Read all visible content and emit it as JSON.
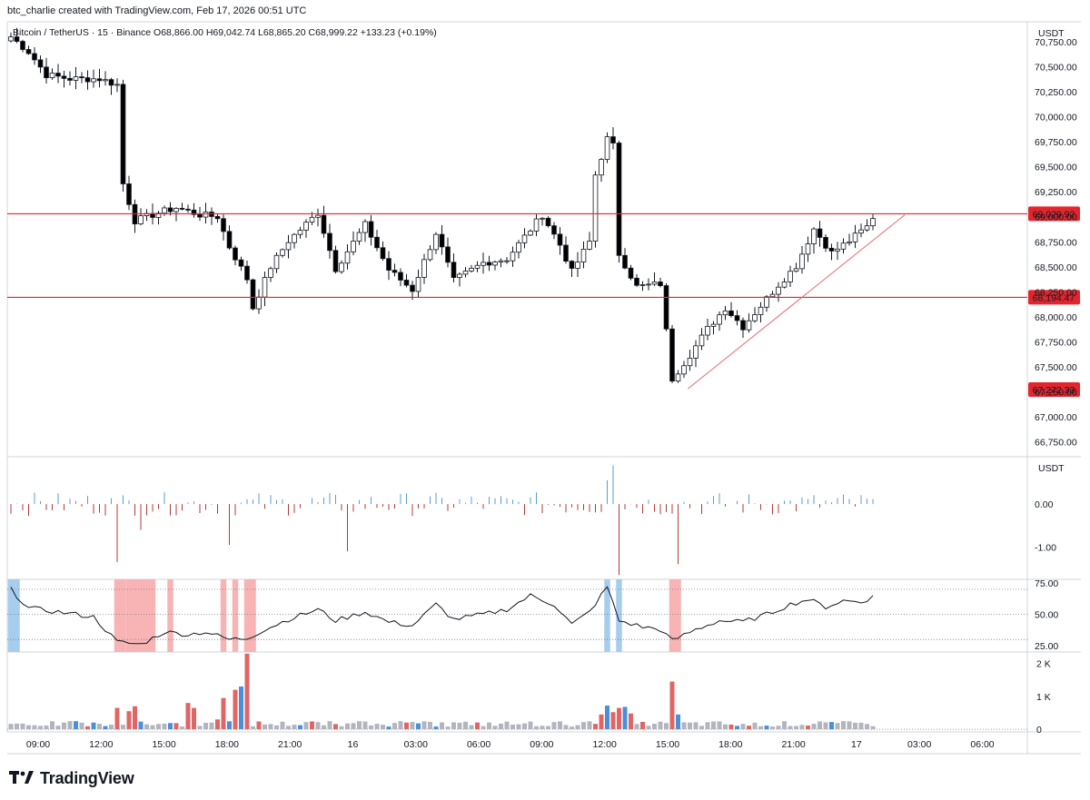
{
  "header": {
    "created_by": "btc_charlie created with TradingView.com, Feb 17, 2026 00:51 UTC"
  },
  "symbol_line": "Bitcoin / TetherUS · 15 · Binance  O68,866.00  H69,042.74  L68,865.20  C68,999.22  +133.23 (+0.19%)",
  "colors": {
    "up": "#ffffff",
    "down": "#000000",
    "outline": "#131722",
    "hline": "#e3262d",
    "trendline": "#e86a6f",
    "label_bg": "#e3262d",
    "pos_bar": "#5b9bd5",
    "neg_bar": "#b23a3a",
    "vol_gray": "#b2b5be",
    "vol_red": "#e06666",
    "vol_blue": "#4a90d9",
    "rsi_red_band": "#f8b4b4",
    "rsi_blue_band": "#a6cdee"
  },
  "footer": {
    "brand": "TradingView",
    "logo_icon": "tradingview-logo-icon"
  },
  "chart_data": [
    {
      "type": "candlestick",
      "title": "Bitcoin / TetherUS · 15 · Binance",
      "unit": "USDT",
      "ylim": [
        66600,
        70950
      ],
      "y_ticks": [
        "70,750.00",
        "70,500.00",
        "70,250.00",
        "70,000.00",
        "69,750.00",
        "69,500.00",
        "69,250.00",
        "69,000.00",
        "68,750.00",
        "68,500.00",
        "68,250.00",
        "68,000.00",
        "67,750.00",
        "67,500.00",
        "67,250.00",
        "67,000.00",
        "66,750.00"
      ],
      "y_tick_values": [
        70750,
        70500,
        70250,
        70000,
        69750,
        69500,
        69250,
        69000,
        68750,
        68500,
        68250,
        68000,
        67750,
        67500,
        67250,
        67000,
        66750
      ],
      "x_ticks": [
        "09:00",
        "12:00",
        "15:00",
        "18:00",
        "21:00",
        "16",
        "03:00",
        "06:00",
        "09:00",
        "12:00",
        "15:00",
        "18:00",
        "21:00",
        "17",
        "03:00",
        "06:00"
      ],
      "horizontal_lines": [
        {
          "value": 69029.92,
          "label": "69,029.92"
        },
        {
          "value": 68194.47,
          "label": "68,194.47"
        }
      ],
      "price_label": "67,272.33",
      "price_label_value": 67272.33,
      "trendline": {
        "from": {
          "index": 0.78,
          "value": 67280
        },
        "to": {
          "index": 1.03,
          "value": 69020
        }
      },
      "anchors": [
        {
          "i": 0,
          "v": 70800
        },
        {
          "i": 3,
          "v": 70650
        },
        {
          "i": 6,
          "v": 70420
        },
        {
          "i": 10,
          "v": 70380
        },
        {
          "i": 15,
          "v": 70380
        },
        {
          "i": 18,
          "v": 70320
        },
        {
          "i": 19,
          "v": 69330
        },
        {
          "i": 21,
          "v": 68960
        },
        {
          "i": 25,
          "v": 69040
        },
        {
          "i": 28,
          "v": 69090
        },
        {
          "i": 32,
          "v": 69020
        },
        {
          "i": 35,
          "v": 69000
        },
        {
          "i": 37,
          "v": 68700
        },
        {
          "i": 40,
          "v": 68380
        },
        {
          "i": 41,
          "v": 68090
        },
        {
          "i": 44,
          "v": 68500
        },
        {
          "i": 47,
          "v": 68760
        },
        {
          "i": 52,
          "v": 69040
        },
        {
          "i": 55,
          "v": 68480
        },
        {
          "i": 60,
          "v": 68920
        },
        {
          "i": 64,
          "v": 68470
        },
        {
          "i": 68,
          "v": 68270
        },
        {
          "i": 72,
          "v": 68840
        },
        {
          "i": 75,
          "v": 68360
        },
        {
          "i": 80,
          "v": 68540
        },
        {
          "i": 84,
          "v": 68580
        },
        {
          "i": 90,
          "v": 69020
        },
        {
          "i": 93,
          "v": 68720
        },
        {
          "i": 95,
          "v": 68450
        },
        {
          "i": 98,
          "v": 68750
        },
        {
          "i": 99,
          "v": 69420
        },
        {
          "i": 101,
          "v": 69780
        },
        {
          "i": 102,
          "v": 69710
        },
        {
          "i": 103,
          "v": 68630
        },
        {
          "i": 106,
          "v": 68300
        },
        {
          "i": 110,
          "v": 68330
        },
        {
          "i": 112,
          "v": 67380
        },
        {
          "i": 115,
          "v": 67620
        },
        {
          "i": 118,
          "v": 67880
        },
        {
          "i": 121,
          "v": 68090
        },
        {
          "i": 124,
          "v": 67900
        },
        {
          "i": 127,
          "v": 68110
        },
        {
          "i": 130,
          "v": 68320
        },
        {
          "i": 133,
          "v": 68510
        },
        {
          "i": 136,
          "v": 68880
        },
        {
          "i": 139,
          "v": 68640
        },
        {
          "i": 142,
          "v": 68760
        },
        {
          "i": 145,
          "v": 68900
        },
        {
          "i": 146,
          "v": 68999
        }
      ]
    },
    {
      "type": "bar",
      "unit": "USDT",
      "y_ticks": [
        "0.00",
        "-1.00"
      ],
      "y_tick_values": [
        0,
        -1
      ],
      "ylim": [
        -1.75,
        1.1
      ],
      "spikes": [
        {
          "i": 18,
          "v": -1.35
        },
        {
          "i": 22,
          "v": -0.6
        },
        {
          "i": 37,
          "v": -0.95
        },
        {
          "i": 57,
          "v": -1.1
        },
        {
          "i": 102,
          "v": 0.9
        },
        {
          "i": 103,
          "v": -1.65
        },
        {
          "i": 113,
          "v": -1.4
        },
        {
          "i": 101,
          "v": 0.55
        }
      ]
    },
    {
      "type": "line",
      "y_ticks": [
        "75.00",
        "50.00",
        "25.00"
      ],
      "y_tick_values": [
        75,
        50,
        25
      ],
      "ylim": [
        20,
        78
      ],
      "levels": [
        70,
        50,
        30
      ],
      "anchors": [
        {
          "i": 0,
          "v": 70
        },
        {
          "i": 3,
          "v": 55
        },
        {
          "i": 8,
          "v": 52
        },
        {
          "i": 14,
          "v": 48
        },
        {
          "i": 18,
          "v": 28
        },
        {
          "i": 22,
          "v": 26
        },
        {
          "i": 26,
          "v": 36
        },
        {
          "i": 30,
          "v": 34
        },
        {
          "i": 33,
          "v": 36
        },
        {
          "i": 37,
          "v": 30
        },
        {
          "i": 40,
          "v": 31
        },
        {
          "i": 43,
          "v": 38
        },
        {
          "i": 47,
          "v": 46
        },
        {
          "i": 52,
          "v": 54
        },
        {
          "i": 55,
          "v": 45
        },
        {
          "i": 60,
          "v": 52
        },
        {
          "i": 64,
          "v": 44
        },
        {
          "i": 68,
          "v": 41
        },
        {
          "i": 72,
          "v": 58
        },
        {
          "i": 75,
          "v": 46
        },
        {
          "i": 80,
          "v": 50
        },
        {
          "i": 84,
          "v": 54
        },
        {
          "i": 88,
          "v": 65
        },
        {
          "i": 92,
          "v": 58
        },
        {
          "i": 95,
          "v": 42
        },
        {
          "i": 98,
          "v": 52
        },
        {
          "i": 101,
          "v": 72
        },
        {
          "i": 103,
          "v": 45
        },
        {
          "i": 107,
          "v": 40
        },
        {
          "i": 110,
          "v": 38
        },
        {
          "i": 112,
          "v": 29
        },
        {
          "i": 116,
          "v": 38
        },
        {
          "i": 120,
          "v": 45
        },
        {
          "i": 124,
          "v": 44
        },
        {
          "i": 128,
          "v": 50
        },
        {
          "i": 132,
          "v": 58
        },
        {
          "i": 135,
          "v": 62
        },
        {
          "i": 138,
          "v": 56
        },
        {
          "i": 141,
          "v": 61
        },
        {
          "i": 144,
          "v": 60
        },
        {
          "i": 146,
          "v": 64
        }
      ],
      "red_bands": [
        [
          18,
          19
        ],
        [
          20,
          24
        ],
        [
          27,
          27
        ],
        [
          36,
          36
        ],
        [
          38,
          38
        ],
        [
          40,
          41
        ]
      ],
      "blue_bands": [
        [
          0,
          1
        ],
        [
          101,
          101
        ],
        [
          103,
          103
        ]
      ],
      "red_bands_2": [
        [
          112,
          113
        ]
      ]
    },
    {
      "type": "bar",
      "y_ticks": [
        "2 K",
        "1 K",
        "0"
      ],
      "y_tick_values": [
        2000,
        1000,
        0
      ],
      "ylim": [
        -80,
        2350
      ],
      "spikes": [
        {
          "i": 18,
          "v": 650
        },
        {
          "i": 20,
          "v": 550
        },
        {
          "i": 21,
          "v": 700
        },
        {
          "i": 30,
          "v": 800
        },
        {
          "i": 31,
          "v": 650
        },
        {
          "i": 35,
          "v": 300
        },
        {
          "i": 36,
          "v": 950
        },
        {
          "i": 38,
          "v": 1200
        },
        {
          "i": 39,
          "v": 1300
        },
        {
          "i": 40,
          "v": 2300
        },
        {
          "i": 100,
          "v": 450
        },
        {
          "i": 101,
          "v": 720
        },
        {
          "i": 102,
          "v": 520
        },
        {
          "i": 103,
          "v": 650
        },
        {
          "i": 104,
          "v": 680
        },
        {
          "i": 105,
          "v": 480
        },
        {
          "i": 112,
          "v": 1450
        },
        {
          "i": 113,
          "v": 450
        }
      ]
    }
  ]
}
